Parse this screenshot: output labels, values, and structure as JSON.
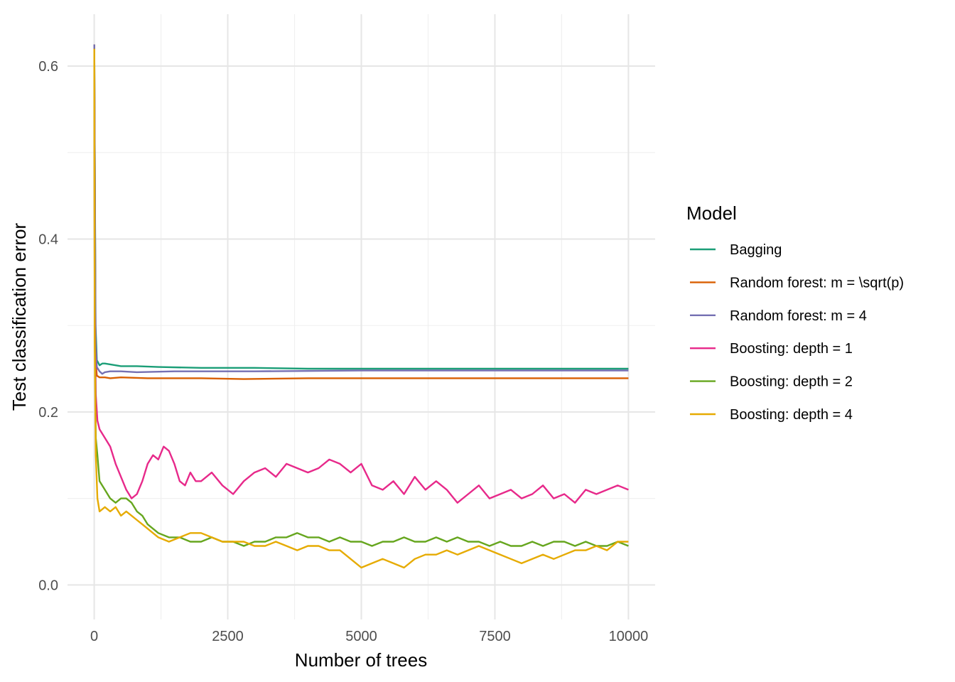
{
  "chart_data": {
    "type": "line",
    "xlabel": "Number of trees",
    "ylabel": "Test classification error",
    "xlim": [
      -500,
      10500
    ],
    "ylim": [
      -0.04,
      0.66
    ],
    "x_ticks": [
      0,
      2500,
      5000,
      7500,
      10000
    ],
    "x_tick_labels": [
      "0",
      "2500",
      "5000",
      "7500",
      "10000"
    ],
    "y_ticks": [
      0.0,
      0.2,
      0.4,
      0.6
    ],
    "y_tick_labels": [
      "0.0",
      "0.2",
      "0.4",
      "0.6"
    ],
    "grid": true,
    "legend": {
      "title": "Model",
      "position": "right"
    },
    "series": [
      {
        "name": "Bagging",
        "color": "#1b9e77",
        "x": [
          1,
          25,
          50,
          100,
          150,
          200,
          300,
          500,
          800,
          1200,
          2000,
          3000,
          4000,
          6000,
          8000,
          10000
        ],
        "y": [
          0.625,
          0.3,
          0.26,
          0.254,
          0.256,
          0.256,
          0.255,
          0.253,
          0.253,
          0.252,
          0.251,
          0.251,
          0.25,
          0.25,
          0.25,
          0.25
        ]
      },
      {
        "name": "Random forest: m = \\sqrt(p)",
        "color": "#d95f02",
        "x": [
          1,
          25,
          50,
          100,
          200,
          300,
          500,
          1000,
          2000,
          2800,
          4000,
          6000,
          8000,
          10000
        ],
        "y": [
          0.625,
          0.26,
          0.242,
          0.24,
          0.24,
          0.239,
          0.24,
          0.239,
          0.239,
          0.238,
          0.239,
          0.239,
          0.239,
          0.239
        ]
      },
      {
        "name": "Random forest: m = 4",
        "color": "#7570b3",
        "x": [
          1,
          25,
          50,
          100,
          150,
          200,
          300,
          500,
          800,
          1500,
          3000,
          5000,
          7000,
          10000
        ],
        "y": [
          0.625,
          0.28,
          0.252,
          0.247,
          0.244,
          0.246,
          0.247,
          0.247,
          0.246,
          0.247,
          0.247,
          0.248,
          0.248,
          0.248
        ]
      },
      {
        "name": "Boosting: depth = 1",
        "color": "#e7298a",
        "x": [
          1,
          10,
          30,
          60,
          100,
          200,
          300,
          400,
          500,
          600,
          700,
          800,
          900,
          1000,
          1100,
          1200,
          1300,
          1400,
          1500,
          1600,
          1700,
          1800,
          1900,
          2000,
          2200,
          2400,
          2600,
          2800,
          3000,
          3200,
          3400,
          3600,
          3800,
          4000,
          4200,
          4400,
          4600,
          4800,
          5000,
          5200,
          5400,
          5600,
          5800,
          6000,
          6200,
          6400,
          6600,
          6800,
          7000,
          7200,
          7400,
          7600,
          7800,
          8000,
          8200,
          8400,
          8600,
          8800,
          9000,
          9200,
          9400,
          9600,
          9800,
          10000
        ],
        "y": [
          0.62,
          0.32,
          0.22,
          0.19,
          0.18,
          0.17,
          0.16,
          0.14,
          0.125,
          0.11,
          0.1,
          0.105,
          0.12,
          0.14,
          0.15,
          0.145,
          0.16,
          0.155,
          0.14,
          0.12,
          0.115,
          0.13,
          0.12,
          0.12,
          0.13,
          0.115,
          0.105,
          0.12,
          0.13,
          0.135,
          0.125,
          0.14,
          0.135,
          0.13,
          0.135,
          0.145,
          0.14,
          0.13,
          0.14,
          0.115,
          0.11,
          0.12,
          0.105,
          0.125,
          0.11,
          0.12,
          0.11,
          0.095,
          0.105,
          0.115,
          0.1,
          0.105,
          0.11,
          0.1,
          0.105,
          0.115,
          0.1,
          0.105,
          0.095,
          0.11,
          0.105,
          0.11,
          0.115,
          0.11
        ]
      },
      {
        "name": "Boosting: depth = 2",
        "color": "#66a61e",
        "x": [
          1,
          10,
          30,
          60,
          100,
          200,
          300,
          400,
          500,
          600,
          700,
          800,
          900,
          1000,
          1200,
          1400,
          1600,
          1800,
          2000,
          2200,
          2400,
          2600,
          2800,
          3000,
          3200,
          3400,
          3600,
          3800,
          4000,
          4200,
          4400,
          4600,
          4800,
          5000,
          5200,
          5400,
          5600,
          5800,
          6000,
          6200,
          6400,
          6600,
          6800,
          7000,
          7200,
          7400,
          7600,
          7800,
          8000,
          8200,
          8400,
          8600,
          8800,
          9000,
          9200,
          9400,
          9600,
          9800,
          10000
        ],
        "y": [
          0.62,
          0.3,
          0.17,
          0.15,
          0.12,
          0.11,
          0.1,
          0.095,
          0.1,
          0.1,
          0.095,
          0.085,
          0.08,
          0.07,
          0.06,
          0.055,
          0.055,
          0.05,
          0.05,
          0.055,
          0.05,
          0.05,
          0.045,
          0.05,
          0.05,
          0.055,
          0.055,
          0.06,
          0.055,
          0.055,
          0.05,
          0.055,
          0.05,
          0.05,
          0.045,
          0.05,
          0.05,
          0.055,
          0.05,
          0.05,
          0.055,
          0.05,
          0.055,
          0.05,
          0.05,
          0.045,
          0.05,
          0.045,
          0.045,
          0.05,
          0.045,
          0.05,
          0.05,
          0.045,
          0.05,
          0.045,
          0.045,
          0.05,
          0.045
        ]
      },
      {
        "name": "Boosting: depth = 4",
        "color": "#e6ab02",
        "x": [
          1,
          10,
          30,
          60,
          100,
          200,
          300,
          400,
          500,
          600,
          700,
          800,
          900,
          1000,
          1200,
          1400,
          1600,
          1800,
          2000,
          2200,
          2400,
          2600,
          2800,
          3000,
          3200,
          3400,
          3600,
          3800,
          4000,
          4200,
          4400,
          4600,
          4800,
          5000,
          5200,
          5400,
          5600,
          5800,
          6000,
          6200,
          6400,
          6600,
          6800,
          7000,
          7200,
          7400,
          7600,
          7800,
          8000,
          8200,
          8400,
          8600,
          8800,
          9000,
          9200,
          9400,
          9600,
          9800,
          10000
        ],
        "y": [
          0.62,
          0.28,
          0.15,
          0.1,
          0.085,
          0.09,
          0.085,
          0.09,
          0.08,
          0.085,
          0.08,
          0.075,
          0.07,
          0.065,
          0.055,
          0.05,
          0.055,
          0.06,
          0.06,
          0.055,
          0.05,
          0.05,
          0.05,
          0.045,
          0.045,
          0.05,
          0.045,
          0.04,
          0.045,
          0.045,
          0.04,
          0.04,
          0.03,
          0.02,
          0.025,
          0.03,
          0.025,
          0.02,
          0.03,
          0.035,
          0.035,
          0.04,
          0.035,
          0.04,
          0.045,
          0.04,
          0.035,
          0.03,
          0.025,
          0.03,
          0.035,
          0.03,
          0.035,
          0.04,
          0.04,
          0.045,
          0.04,
          0.05,
          0.05
        ]
      }
    ]
  }
}
